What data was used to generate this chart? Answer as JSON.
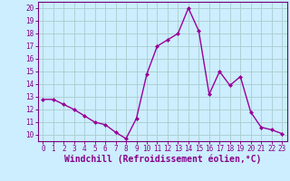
{
  "x": [
    0,
    1,
    2,
    3,
    4,
    5,
    6,
    7,
    8,
    9,
    10,
    11,
    12,
    13,
    14,
    15,
    16,
    17,
    18,
    19,
    20,
    21,
    22,
    23
  ],
  "y": [
    12.8,
    12.8,
    12.4,
    12.0,
    11.5,
    11.0,
    10.8,
    10.2,
    9.7,
    11.3,
    14.8,
    17.0,
    17.5,
    18.0,
    20.0,
    18.2,
    13.2,
    15.0,
    13.9,
    14.6,
    11.8,
    10.6,
    10.4,
    10.1
  ],
  "line_color": "#990099",
  "marker": "D",
  "marker_size": 2,
  "bg_color": "#cceeff",
  "grid_color": "#aacccc",
  "spine_color": "#770077",
  "label_color": "#880088",
  "xlabel": "Windchill (Refroidissement éolien,°C)",
  "xlabel_fontsize": 7,
  "ylim": [
    9.5,
    20.5
  ],
  "yticks": [
    10,
    11,
    12,
    13,
    14,
    15,
    16,
    17,
    18,
    19,
    20
  ],
  "xticks": [
    0,
    1,
    2,
    3,
    4,
    5,
    6,
    7,
    8,
    9,
    10,
    11,
    12,
    13,
    14,
    15,
    16,
    17,
    18,
    19,
    20,
    21,
    22,
    23
  ],
  "tick_fontsize": 5.5,
  "line_width": 1.0
}
